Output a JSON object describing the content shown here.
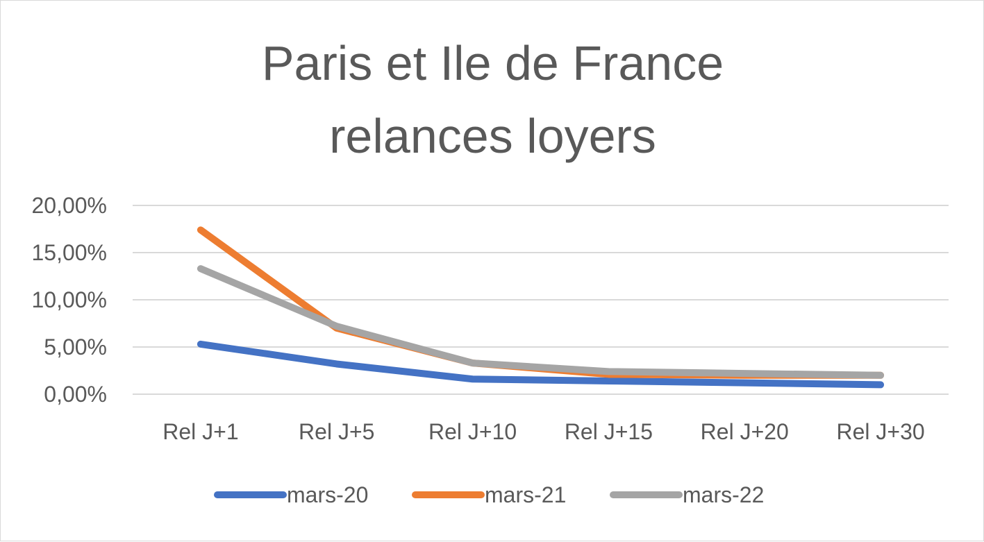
{
  "chart_data": {
    "type": "line",
    "title": [
      "Paris et Ile de France",
      "relances loyers"
    ],
    "categories": [
      "Rel J+1",
      "Rel J+5",
      "Rel J+10",
      "Rel J+15",
      "Rel J+20",
      "Rel J+30"
    ],
    "series": [
      {
        "name": "mars-20",
        "color": "#4472c4",
        "values": [
          5.3,
          3.2,
          1.6,
          1.4,
          1.2,
          1.0
        ]
      },
      {
        "name": "mars-21",
        "color": "#ed7d31",
        "values": [
          17.4,
          7.0,
          3.3,
          2.1,
          2.0,
          2.0
        ]
      },
      {
        "name": "mars-22",
        "color": "#a5a5a5",
        "values": [
          13.3,
          7.2,
          3.3,
          2.4,
          2.2,
          2.0
        ]
      }
    ],
    "yticks": [
      "0,00%",
      "5,00%",
      "10,00%",
      "15,00%",
      "20,00%"
    ],
    "ylim": [
      0,
      20
    ],
    "ytick_values": [
      0,
      5,
      10,
      15,
      20
    ],
    "grid": true,
    "legend": "bottom"
  }
}
